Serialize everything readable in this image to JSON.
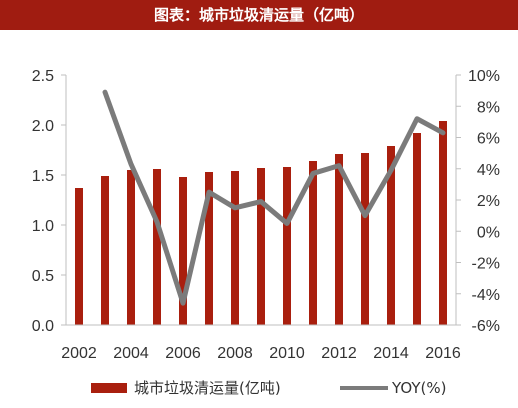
{
  "header": {
    "title": "图表：城市垃圾清运量（亿吨）"
  },
  "colors": {
    "bar": "#a91f0e",
    "line": "#7b7b7b",
    "title_bg": "#a01c11",
    "grid": "#e6e6e6",
    "axis": "#bfbfbf"
  },
  "chart_data": {
    "type": "bar",
    "title": "",
    "xlabel": "",
    "ylabel": "",
    "categories": [
      "2002",
      "2003",
      "2004",
      "2005",
      "2006",
      "2007",
      "2008",
      "2009",
      "2010",
      "2011",
      "2012",
      "2013",
      "2014",
      "2015",
      "2016"
    ],
    "x_tick_labels": [
      "2002",
      "2004",
      "2006",
      "2008",
      "2010",
      "2012",
      "2014",
      "2016"
    ],
    "series": [
      {
        "name": "城市垃圾清运量(亿吨)",
        "type": "bar",
        "axis": "left",
        "values": [
          1.37,
          1.49,
          1.55,
          1.56,
          1.48,
          1.53,
          1.54,
          1.57,
          1.58,
          1.64,
          1.71,
          1.72,
          1.79,
          1.92,
          2.04
        ]
      },
      {
        "name": "YOY(%)",
        "type": "line",
        "axis": "right",
        "values": [
          null,
          8.9,
          4.3,
          0.6,
          -4.6,
          2.5,
          1.5,
          1.9,
          0.5,
          3.7,
          4.2,
          1.0,
          3.9,
          7.2,
          6.3
        ]
      }
    ],
    "y_left": {
      "min": 0,
      "max": 2.5,
      "ticks": [
        "0.0",
        "0.5",
        "1.0",
        "1.5",
        "2.0",
        "2.5"
      ]
    },
    "y_right": {
      "min": -6,
      "max": 10,
      "ticks": [
        "-6%",
        "-4%",
        "-2%",
        "0%",
        "2%",
        "4%",
        "6%",
        "8%",
        "10%"
      ]
    },
    "grid": false,
    "legend": "bottom"
  }
}
